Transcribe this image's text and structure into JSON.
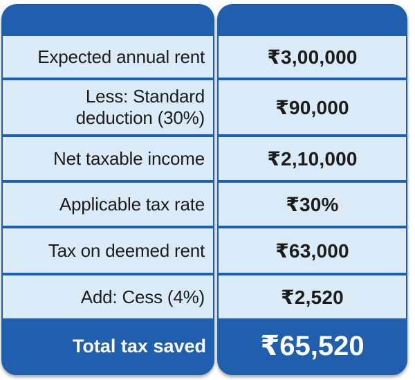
{
  "rows": [
    {
      "label": "Expected annual rent",
      "value": "₹3,00,000"
    },
    {
      "label_line1": "Less: Standard",
      "label_line2": "deduction (30%)",
      "value": "₹90,000"
    },
    {
      "label": "Net taxable income",
      "value": "₹2,10,000"
    },
    {
      "label": "Applicable tax rate",
      "value": "₹30%"
    },
    {
      "label": "Tax on deemed rent",
      "value": "₹63,000"
    },
    {
      "label": "Add: Cess (4%)",
      "value": "₹2,520"
    }
  ],
  "total": {
    "label": "Total tax saved",
    "value": "₹65,520"
  },
  "colors": {
    "header_blue": "#1f5fae",
    "cell_bg": "#dbeaf7",
    "text": "#1c1c1c"
  }
}
